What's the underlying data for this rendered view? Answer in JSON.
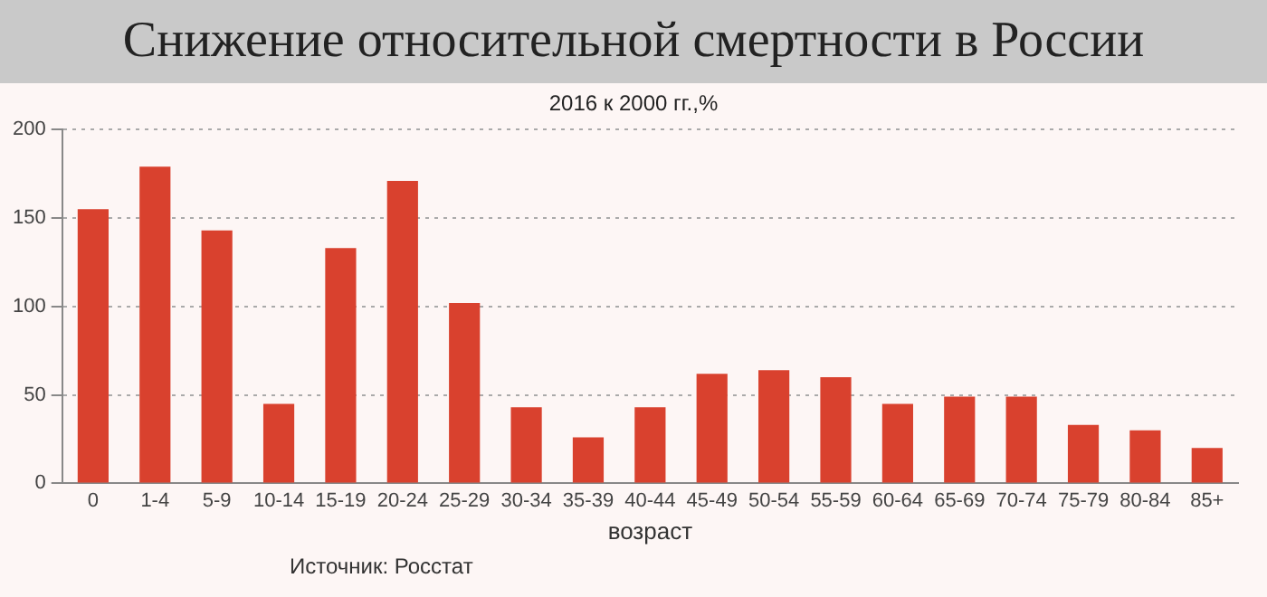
{
  "chart_data": {
    "type": "bar",
    "title": "Снижение относительной смертности в России",
    "subtitle": "2016 к 2000 гг.,%",
    "xlabel": "возраст",
    "categories": [
      "0",
      "1-4",
      "5-9",
      "10-14",
      "15-19",
      "20-24",
      "25-29",
      "30-34",
      "35-39",
      "40-44",
      "45-49",
      "50-54",
      "55-59",
      "60-64",
      "65-69",
      "70-74",
      "75-79",
      "80-84",
      "85+"
    ],
    "values": [
      155,
      179,
      143,
      45,
      133,
      171,
      102,
      43,
      26,
      43,
      62,
      64,
      60,
      45,
      49,
      49,
      33,
      30,
      20
    ],
    "color": "#d9412e",
    "ylim": [
      0,
      200
    ],
    "yticks": [
      0,
      50,
      100,
      150,
      200
    ],
    "grid": "y",
    "legend": false,
    "annotations": [
      "Источник: Росстат"
    ]
  }
}
